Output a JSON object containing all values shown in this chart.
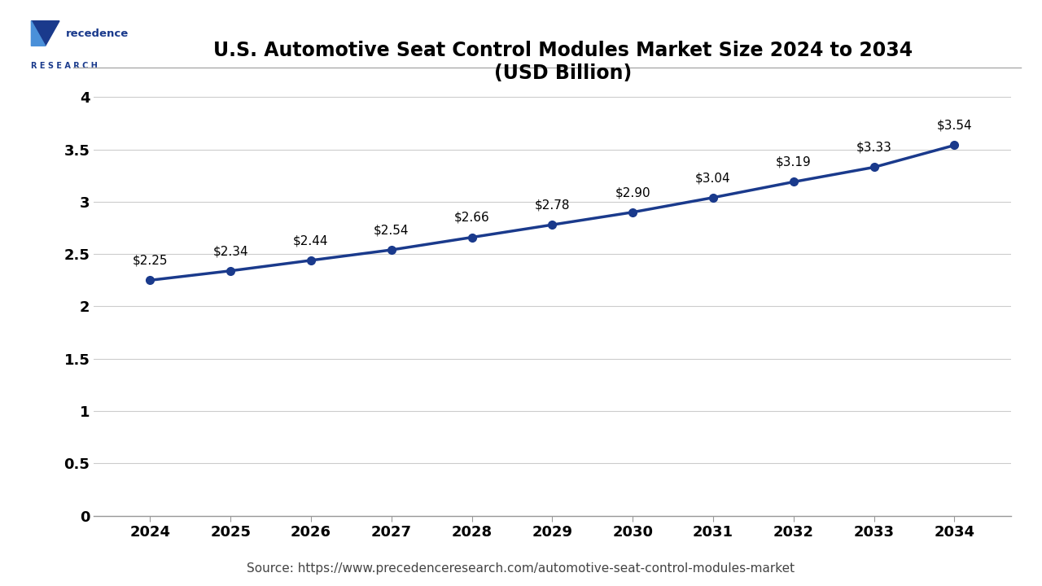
{
  "title_line1": "U.S. Automotive Seat Control Modules Market Size 2024 to 2034",
  "title_line2": "(USD Billion)",
  "years": [
    2024,
    2025,
    2026,
    2027,
    2028,
    2029,
    2030,
    2031,
    2032,
    2033,
    2034
  ],
  "values": [
    2.25,
    2.34,
    2.44,
    2.54,
    2.66,
    2.78,
    2.9,
    3.04,
    3.19,
    3.33,
    3.54
  ],
  "labels": [
    "$2.25",
    "$2.34",
    "$2.44",
    "$2.54",
    "$2.66",
    "$2.78",
    "$2.90",
    "$3.04",
    "$3.19",
    "$3.33",
    "$3.54"
  ],
  "line_color": "#1a3a8c",
  "marker_color": "#1a3a8c",
  "ylim": [
    0,
    4.2
  ],
  "yticks": [
    0,
    0.5,
    1,
    1.5,
    2,
    2.5,
    3,
    3.5,
    4
  ],
  "source_text": "Source: https://www.precedenceresearch.com/automotive-seat-control-modules-market",
  "background_color": "#ffffff",
  "plot_bg_color": "#ffffff",
  "grid_color": "#cccccc",
  "title_color": "#000000",
  "label_color": "#000000",
  "tick_color": "#000000",
  "label_fontsize": 11,
  "title_fontsize": 17,
  "tick_fontsize": 13,
  "source_fontsize": 11,
  "logo_text_color": "#1a3a8c",
  "logo_accent_color": "#4a90d9"
}
